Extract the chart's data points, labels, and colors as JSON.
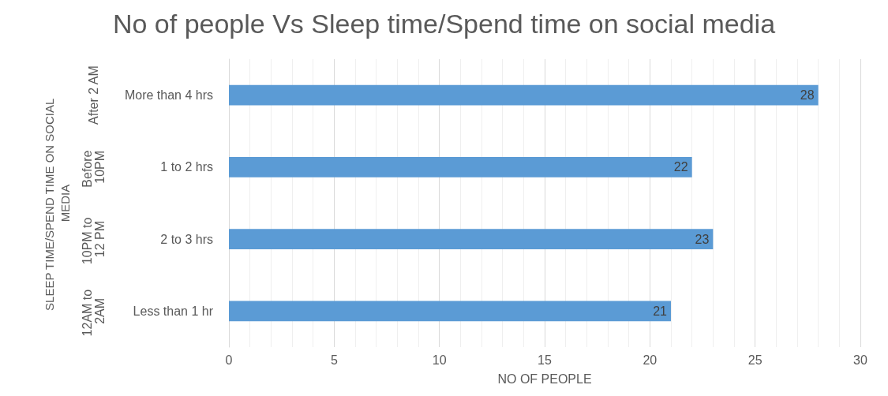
{
  "chart_data": {
    "type": "bar",
    "orientation": "horizontal",
    "title": "No of people Vs Sleep time/Spend time on social media",
    "xlabel": "NO OF PEOPLE",
    "ylabel": "SLEEP TIME/SPEND TIME ON SOCIAL MEDIA",
    "categories": [
      "More than 4 hrs",
      "1 to 2 hrs",
      "2 to 3 hrs",
      "Less than 1 hr"
    ],
    "values": [
      28,
      22,
      23,
      21
    ],
    "color": "#5b9bd5",
    "data_labels": true,
    "annotations": [
      "After 2 AM",
      "Before 10PM",
      "10PM to 12 PM",
      "12AM to 2AM"
    ],
    "xlim": [
      0,
      30
    ],
    "xticks": [
      0,
      5,
      10,
      15,
      20,
      25,
      30
    ],
    "grid": "x"
  }
}
